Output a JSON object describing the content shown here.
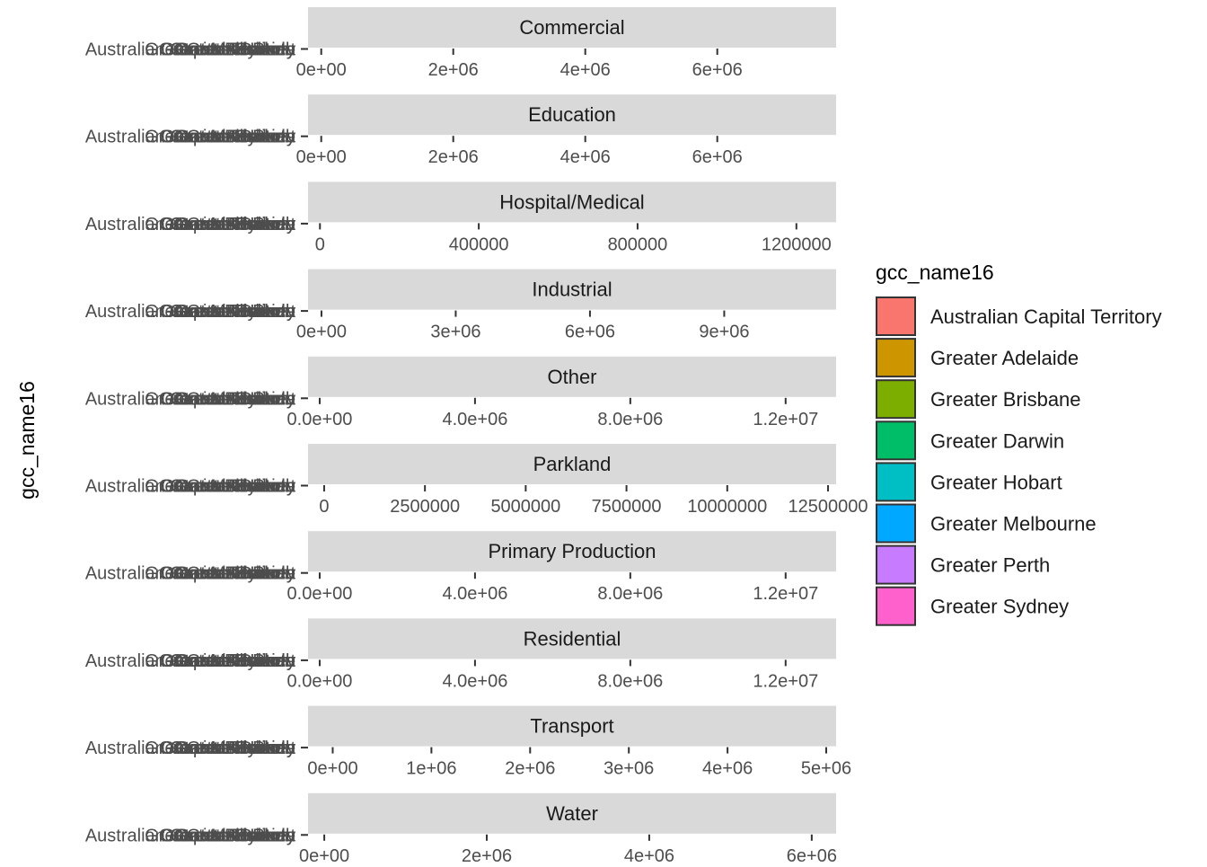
{
  "chart_data": {
    "type": "bar",
    "orientation": "horizontal",
    "facet_by": "zone",
    "ylabel": "gcc_name16",
    "xlabel": "",
    "legend": {
      "title": "gcc_name16",
      "placement": "right",
      "entries": [
        {
          "name": "Australian Capital Territory",
          "color": "#F8766D"
        },
        {
          "name": "Greater Adelaide",
          "color": "#CD9600"
        },
        {
          "name": "Greater Brisbane",
          "color": "#7CAE00"
        },
        {
          "name": "Greater Darwin",
          "color": "#00BE67"
        },
        {
          "name": "Greater Hobart",
          "color": "#00BFC4"
        },
        {
          "name": "Greater Melbourne",
          "color": "#00A9FF"
        },
        {
          "name": "Greater Perth",
          "color": "#C77CFF"
        },
        {
          "name": "Greater Sydney",
          "color": "#FF61CC"
        }
      ]
    },
    "categories": [
      "Australian Capital Territory",
      "Greater Adelaide",
      "Greater Brisbane",
      "Greater Darwin",
      "Greater Hobart",
      "Greater Melbourne",
      "Greater Perth",
      "Greater Sydney"
    ],
    "facets": [
      {
        "title": "Commercial",
        "xlim": [
          -200000,
          7800000
        ],
        "ticks": [
          0,
          2000000,
          4000000,
          6000000
        ],
        "tick_labels": [
          "0e+00",
          "2e+06",
          "4e+06",
          "6e+06"
        ]
      },
      {
        "title": "Education",
        "xlim": [
          -200000,
          7800000
        ],
        "ticks": [
          0,
          2000000,
          4000000,
          6000000
        ],
        "tick_labels": [
          "0e+00",
          "2e+06",
          "4e+06",
          "6e+06"
        ]
      },
      {
        "title": "Hospital/Medical",
        "xlim": [
          -30000,
          1300000
        ],
        "ticks": [
          0,
          400000,
          800000,
          1200000
        ],
        "tick_labels": [
          "0",
          "400000",
          "800000",
          "1200000"
        ]
      },
      {
        "title": "Industrial",
        "xlim": [
          -300000,
          11500000
        ],
        "ticks": [
          0,
          3000000,
          6000000,
          9000000
        ],
        "tick_labels": [
          "0e+00",
          "3e+06",
          "6e+06",
          "9e+06"
        ]
      },
      {
        "title": "Other",
        "xlim": [
          -300000,
          13300000
        ],
        "ticks": [
          0,
          4000000,
          8000000,
          12000000
        ],
        "tick_labels": [
          "0.0e+00",
          "4.0e+06",
          "8.0e+06",
          "1.2e+07"
        ]
      },
      {
        "title": "Parkland",
        "xlim": [
          -400000,
          12700000
        ],
        "ticks": [
          0,
          2500000,
          5000000,
          7500000,
          10000000,
          12500000
        ],
        "tick_labels": [
          "0",
          "2500000",
          "5000000",
          "7500000",
          "10000000",
          "12500000"
        ]
      },
      {
        "title": "Primary Production",
        "xlim": [
          -300000,
          13300000
        ],
        "ticks": [
          0,
          4000000,
          8000000,
          12000000
        ],
        "tick_labels": [
          "0.0e+00",
          "4.0e+06",
          "8.0e+06",
          "1.2e+07"
        ]
      },
      {
        "title": "Residential",
        "xlim": [
          -300000,
          13300000
        ],
        "ticks": [
          0,
          4000000,
          8000000,
          12000000
        ],
        "tick_labels": [
          "0.0e+00",
          "4.0e+06",
          "8.0e+06",
          "1.2e+07"
        ]
      },
      {
        "title": "Transport",
        "xlim": [
          -250000,
          5100000
        ],
        "ticks": [
          0,
          1000000,
          2000000,
          3000000,
          4000000,
          5000000
        ],
        "tick_labels": [
          "0e+00",
          "1e+06",
          "2e+06",
          "3e+06",
          "4e+06",
          "5e+06"
        ]
      },
      {
        "title": "Water",
        "xlim": [
          -200000,
          6300000
        ],
        "ticks": [
          0,
          2000000,
          4000000,
          6000000
        ],
        "tick_labels": [
          "0e+00",
          "2e+06",
          "4e+06",
          "6e+06"
        ]
      }
    ]
  }
}
